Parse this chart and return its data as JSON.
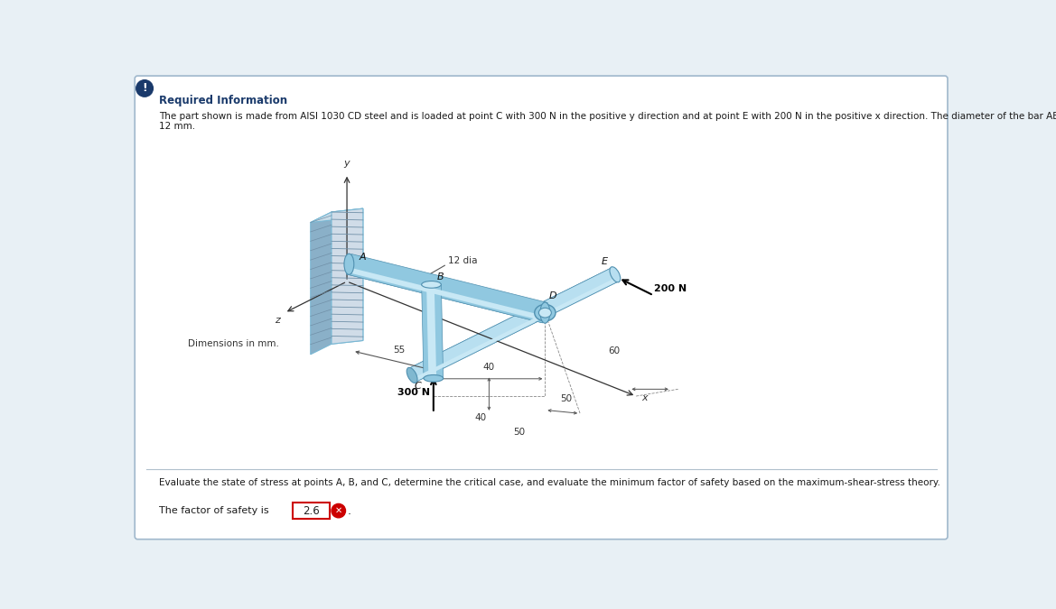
{
  "title": "Required Information",
  "body_line1": "The part shown is made from AISI 1030 CD steel and is loaded at point C with 300 N in the positive y direction and at point E with 200 N in the positive x direction. The diameter of the bar ABD is",
  "body_line2": "12 mm.",
  "question_text": "Evaluate the state of stress at points A, B, and C, determine the critical case, and evaluate the minimum factor of safety based on the maximum-shear-stress theory.",
  "answer_label": "The factor of safety is",
  "answer_value": "2.6",
  "bg_color": "#e8f0f5",
  "box_color": "#ffffff",
  "border_color": "#a0b8cc",
  "title_color": "#1a3a6b",
  "text_color": "#1a1a1a",
  "answer_box_border": "#cc0000",
  "icon_bg": "#1a3a6b",
  "error_bg": "#cc0000",
  "bar_highlight": "#c8e8f5",
  "bar_mid": "#90c8e0",
  "bar_dark": "#60a0c0",
  "bar_shadow": "#4880a0",
  "wall_face": "#b8d8e8",
  "wall_side": "#8ab0c8",
  "wall_hatch_bg": "#d0dce8",
  "hatch_color": "#7090a8",
  "plate_color": "#d8ecf5",
  "arm_top": "#b8dff0",
  "arm_side": "#80b8d0",
  "dim_color": "#333333",
  "label_color": "#111111"
}
